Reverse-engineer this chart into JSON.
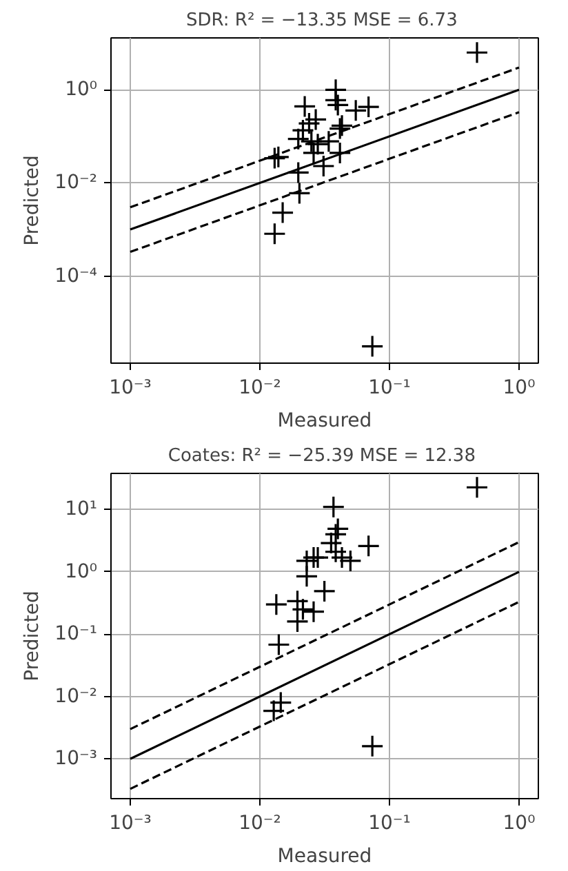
{
  "chart_data": [
    {
      "type": "scatter",
      "title": "SDR: R² = −13.35  MSE = 6.73",
      "xlabel": "Measured",
      "ylabel": "Predicted",
      "log": "xy",
      "grid": true,
      "xlim": [
        0.00071,
        1.41
      ],
      "ylim": [
        1.35e-06,
        13
      ],
      "xticks": [
        {
          "value": 0.001,
          "label": "10⁻³"
        },
        {
          "value": 0.01,
          "label": "10⁻²"
        },
        {
          "value": 0.1,
          "label": "10⁻¹"
        },
        {
          "value": 1,
          "label": "10⁰"
        }
      ],
      "yticks": [
        {
          "value": 0.0001,
          "label": "10⁻⁴"
        },
        {
          "value": 0.01,
          "label": "10⁻²"
        },
        {
          "value": 1,
          "label": "10⁰"
        }
      ],
      "series": [
        {
          "marker": "cross",
          "color": "#000000",
          "x": [
            0.474,
            0.0738,
            0.013,
            0.015,
            0.0202,
            0.0198,
            0.0139,
            0.013,
            0.0222,
            0.024,
            0.027,
            0.0215,
            0.0198,
            0.025,
            0.028,
            0.026,
            0.031,
            0.034,
            0.0385,
            0.0385,
            0.04,
            0.0415,
            0.043,
            0.0415,
            0.055,
            0.069
          ],
          "values": [
            6.3,
            3.1e-06,
            0.00081,
            0.0023,
            0.006,
            0.0167,
            0.036,
            0.034,
            0.44,
            0.19,
            0.23,
            0.135,
            0.088,
            0.078,
            0.068,
            0.044,
            0.023,
            0.078,
            1.0,
            0.6,
            0.47,
            0.147,
            0.17,
            0.044,
            0.36,
            0.43
          ]
        },
        {
          "type": "line",
          "color": "#000000",
          "line_style": "solid",
          "x": [
            0.001,
            1
          ],
          "values": [
            0.001,
            1
          ]
        },
        {
          "type": "line",
          "color": "#000000",
          "line_style": "dashed",
          "x": [
            0.001,
            1
          ],
          "values": [
            0.003,
            3
          ]
        },
        {
          "type": "line",
          "color": "#000000",
          "line_style": "dashed",
          "x": [
            0.001,
            1
          ],
          "values": [
            0.00033,
            0.33
          ]
        }
      ]
    },
    {
      "type": "scatter",
      "title": "Coates: R² = −25.39  MSE = 12.38",
      "xlabel": "Measured",
      "ylabel": "Predicted",
      "log": "xy",
      "grid": true,
      "xlim": [
        0.00071,
        1.41
      ],
      "ylim": [
        0.00023,
        38
      ],
      "xticks": [
        {
          "value": 0.001,
          "label": "10⁻³"
        },
        {
          "value": 0.01,
          "label": "10⁻²"
        },
        {
          "value": 0.1,
          "label": "10⁻¹"
        },
        {
          "value": 1,
          "label": "10⁰"
        }
      ],
      "yticks": [
        {
          "value": 0.001,
          "label": "10⁻³"
        },
        {
          "value": 0.01,
          "label": "10⁻²"
        },
        {
          "value": 0.1,
          "label": "10⁻¹"
        },
        {
          "value": 1,
          "label": "10⁰"
        },
        {
          "value": 10,
          "label": "10¹"
        }
      ],
      "series": [
        {
          "marker": "cross",
          "color": "#000000",
          "x": [
            0.474,
            0.0738,
            0.0128,
            0.0145,
            0.014,
            0.0134,
            0.0195,
            0.0195,
            0.0215,
            0.026,
            0.0315,
            0.023,
            0.023,
            0.026,
            0.028,
            0.037,
            0.0385,
            0.04,
            0.0355,
            0.0385,
            0.043,
            0.05,
            0.069
          ],
          "values": [
            22.7,
            0.0016,
            0.0059,
            0.008,
            0.068,
            0.3,
            0.34,
            0.16,
            0.25,
            0.23,
            0.49,
            0.85,
            1.5,
            1.7,
            1.7,
            11,
            4,
            4.9,
            2.9,
            2.1,
            1.7,
            1.5,
            2.6
          ]
        },
        {
          "type": "line",
          "color": "#000000",
          "line_style": "solid",
          "x": [
            0.001,
            1
          ],
          "values": [
            0.001,
            1
          ]
        },
        {
          "type": "line",
          "color": "#000000",
          "line_style": "dashed",
          "x": [
            0.001,
            1
          ],
          "values": [
            0.003,
            3
          ]
        },
        {
          "type": "line",
          "color": "#000000",
          "line_style": "dashed",
          "x": [
            0.001,
            1
          ],
          "values": [
            0.00033,
            0.33
          ]
        }
      ]
    }
  ]
}
